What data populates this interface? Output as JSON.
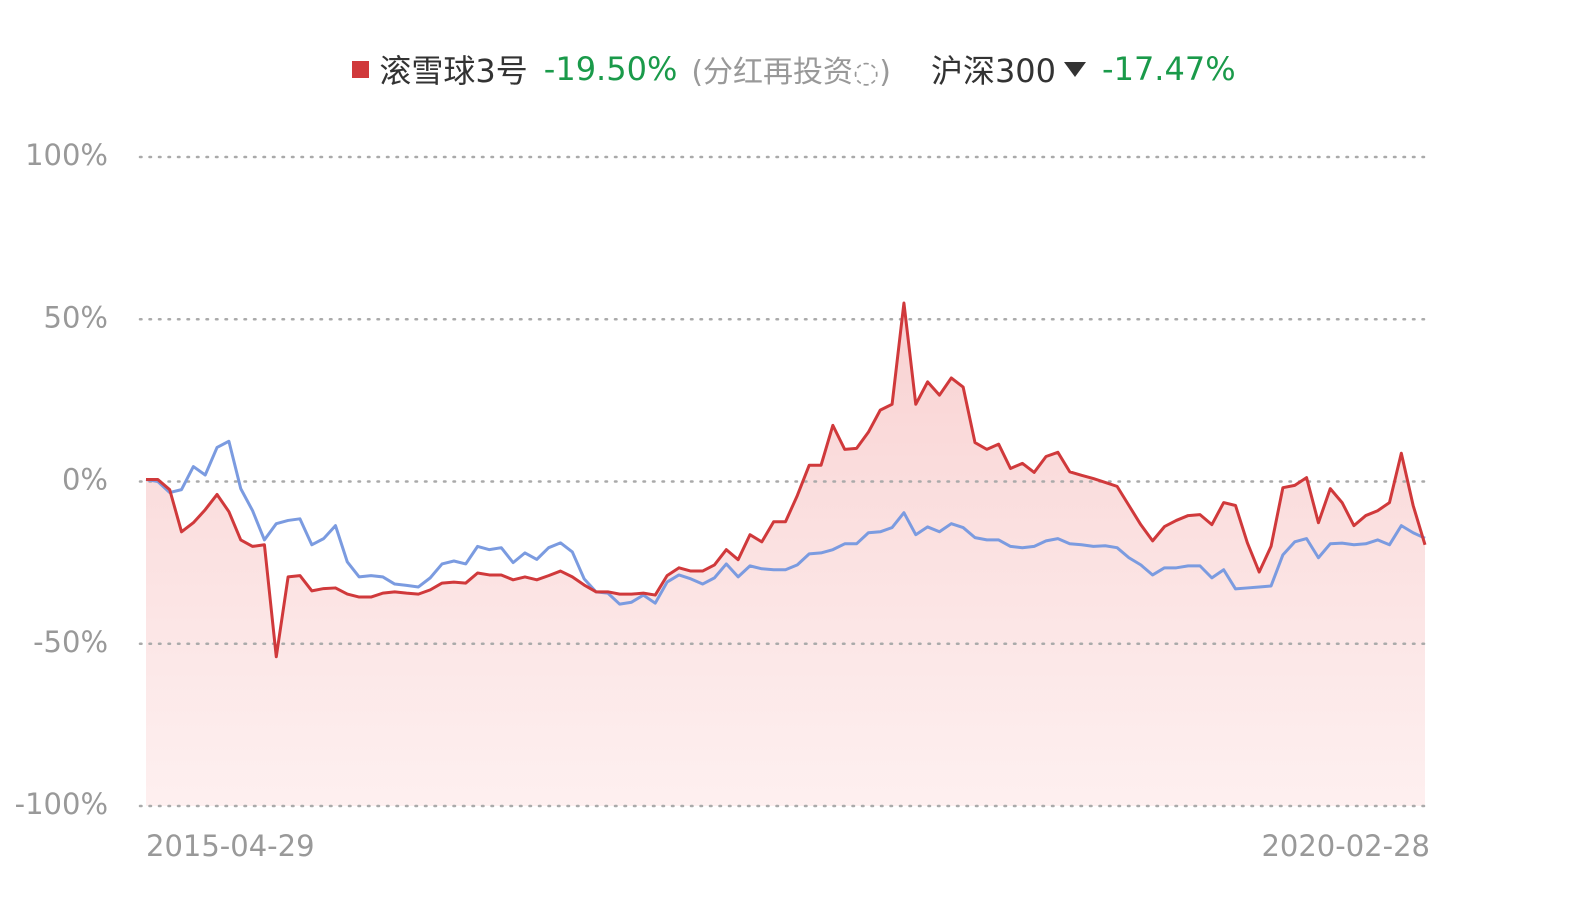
{
  "chart_data": {
    "type": "line",
    "note": "(分红再投资◌)",
    "series": [
      {
        "name": "滚雪球3号",
        "color": "#d0393b",
        "return": "-19.50%",
        "area": true,
        "values": [
          0.6,
          0.6,
          -2.5,
          -15.5,
          -12.7,
          -8.7,
          -4,
          -9.3,
          -18,
          -20,
          -19.5,
          -54,
          -29.4,
          -29,
          -33.7,
          -33,
          -32.8,
          -34.7,
          -35.6,
          -35.6,
          -34.4,
          -34,
          -34.4,
          -34.7,
          -33.4,
          -31.3,
          -31,
          -31.3,
          -28.2,
          -28.8,
          -28.8,
          -30.3,
          -29.4,
          -30.3,
          -29,
          -27.6,
          -29.4,
          -31.9,
          -34,
          -34,
          -34.7,
          -34.7,
          -34.4,
          -35,
          -29,
          -26.6,
          -27.6,
          -27.6,
          -25.7,
          -21,
          -24.1,
          -16.4,
          -18.6,
          -12.4,
          -12.4,
          -4.3,
          5,
          5,
          17.3,
          9.9,
          10.2,
          15.2,
          22,
          23.8,
          55,
          23.8,
          30.7,
          26.6,
          31.9,
          29.1,
          12,
          9.9,
          11.5,
          4,
          5.6,
          2.8,
          7.7,
          9,
          3,
          1.9,
          0.9,
          -0.3,
          -1.5,
          -7.4,
          -13.3,
          -18.3,
          -13.9,
          -12,
          -10.5,
          -10.2,
          -13.3,
          -6.5,
          -7.4,
          -18.9,
          -27.9,
          -20,
          -1.9,
          -1.2,
          1.2,
          -12.7,
          -2.2,
          -6.5,
          -13.6,
          -10.5,
          -9,
          -6.5,
          8.7,
          -7.4,
          -19.5
        ]
      },
      {
        "name": "沪深300",
        "color": "#7b9be0",
        "return": "-17.47%",
        "values": [
          0.6,
          0,
          -3.4,
          -2.5,
          4.6,
          2,
          10.5,
          12.4,
          -2.2,
          -9,
          -18,
          -13,
          -12,
          -11.5,
          -19.5,
          -17.6,
          -13.6,
          -24.8,
          -29.4,
          -29,
          -29.4,
          -31.6,
          -32,
          -32.5,
          -29.7,
          -25.4,
          -24.5,
          -25.4,
          -20,
          -21,
          -20.4,
          -25,
          -22,
          -24,
          -20.4,
          -18.9,
          -21.7,
          -30,
          -34,
          -34.4,
          -37.8,
          -37.2,
          -35,
          -37.5,
          -31,
          -28.8,
          -30,
          -31.6,
          -29.7,
          -25.4,
          -29.4,
          -26,
          -26.9,
          -27.2,
          -27.2,
          -25.7,
          -22.3,
          -22,
          -21,
          -19.2,
          -19.2,
          -15.8,
          -15.5,
          -14.2,
          -9.6,
          -16.4,
          -14,
          -15.5,
          -13,
          -14.2,
          -17.3,
          -18,
          -18,
          -20,
          -20.4,
          -20,
          -18.3,
          -17.6,
          -19.2,
          -19.5,
          -20,
          -19.8,
          -20.4,
          -23.5,
          -25.7,
          -28.8,
          -26.6,
          -26.6,
          -26,
          -26,
          -29.7,
          -27.2,
          -33.1,
          -32.8,
          -32.5,
          -32.2,
          -22.6,
          -18.6,
          -17.6,
          -23.5,
          -19.2,
          -19,
          -19.5,
          -19.2,
          -18,
          -19.5,
          -13.6,
          -15.8,
          -17.47
        ]
      }
    ],
    "categories": [
      "2015-04-29",
      null,
      null,
      null,
      null,
      null,
      null,
      null,
      null,
      null,
      null,
      null,
      null,
      null,
      null,
      null,
      null,
      null,
      null,
      null,
      null,
      null,
      null,
      null,
      null,
      null,
      null,
      null,
      null,
      null,
      null,
      null,
      null,
      null,
      null,
      null,
      null,
      null,
      null,
      null,
      null,
      null,
      null,
      null,
      null,
      null,
      null,
      null,
      null,
      null,
      null,
      null,
      null,
      null,
      null,
      null,
      null,
      null,
      null,
      null,
      null,
      null,
      null,
      null,
      null,
      null,
      null,
      null,
      null,
      null,
      null,
      null,
      null,
      null,
      null,
      null,
      null,
      null,
      null,
      null,
      null,
      null,
      null,
      null,
      null,
      null,
      null,
      null,
      null,
      null,
      null,
      null,
      null,
      null,
      null,
      null,
      null,
      null,
      null,
      null,
      null,
      null,
      null,
      null,
      null,
      null,
      null,
      null,
      "2020-02-28"
    ],
    "ylim": [
      -100,
      100
    ],
    "yticks": [
      {
        "value": -100,
        "label": "-100%"
      },
      {
        "value": -50,
        "label": "-50%"
      },
      {
        "value": 0,
        "label": "0%"
      },
      {
        "value": 50,
        "label": "50%"
      },
      {
        "value": 100,
        "label": "100%"
      }
    ],
    "grid": true
  }
}
